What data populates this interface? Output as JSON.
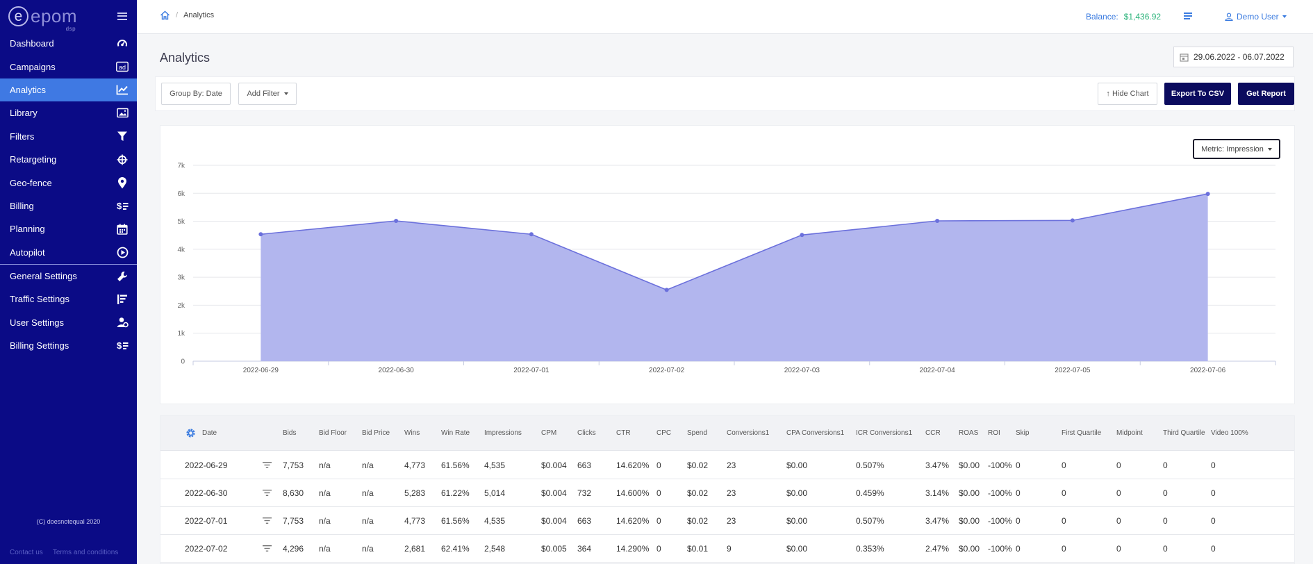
{
  "brand": {
    "name": "epom",
    "sub": "dsp",
    "accent": "#0b0b86",
    "active": "#3f79e3"
  },
  "sidebar": {
    "items": [
      {
        "label": "Dashboard",
        "icon": "gauge-icon"
      },
      {
        "label": "Campaigns",
        "icon": "ad-icon"
      },
      {
        "label": "Analytics",
        "icon": "chart-line-icon",
        "active": true
      },
      {
        "label": "Library",
        "icon": "image-icon"
      },
      {
        "label": "Filters",
        "icon": "funnel-icon"
      },
      {
        "label": "Retargeting",
        "icon": "crosshair-icon"
      },
      {
        "label": "Geo-fence",
        "icon": "map-pin-icon"
      },
      {
        "label": "Billing",
        "icon": "dollar-list-icon"
      },
      {
        "label": "Planning",
        "icon": "calendar-icon"
      },
      {
        "label": "Autopilot",
        "icon": "play-circle-icon"
      }
    ],
    "settings": [
      {
        "label": "General Settings",
        "icon": "wrench-icon"
      },
      {
        "label": "Traffic Settings",
        "icon": "traffic-bars-icon"
      },
      {
        "label": "User Settings",
        "icon": "user-gear-icon"
      },
      {
        "label": "Billing Settings",
        "icon": "dollar-list-icon"
      }
    ],
    "copyright": "(C) doesnotequal 2020",
    "links": [
      "Contact us",
      "Terms and conditions"
    ]
  },
  "header": {
    "breadcrumb": "Analytics",
    "balance_label": "Balance:",
    "balance_value": "$1,436.92",
    "user": "Demo User"
  },
  "page": {
    "title": "Analytics",
    "date_range": "29.06.2022 - 06.07.2022"
  },
  "toolbar": {
    "group_by": "Group By: Date",
    "add_filter": "Add Filter",
    "hide_chart": "↑ Hide Chart",
    "export_csv": "Export To CSV",
    "get_report": "Get Report"
  },
  "metric_button": "Metric: Impression",
  "chart_data": {
    "type": "area",
    "x": [
      "2022-06-29",
      "2022-06-30",
      "2022-07-01",
      "2022-07-02",
      "2022-07-03",
      "2022-07-04",
      "2022-07-05",
      "2022-07-06"
    ],
    "series": [
      {
        "values": [
          4535,
          5014,
          4535,
          2548,
          4510,
          5014,
          5030,
          5980
        ]
      }
    ],
    "y_ticks": [
      "0",
      "1k",
      "2k",
      "3k",
      "4k",
      "5k",
      "6k",
      "7k"
    ],
    "ylim": [
      0,
      7000
    ],
    "grid": true,
    "fill_color": "#b2b6ee",
    "line_color": "#6b70dc"
  },
  "table": {
    "columns": [
      "Date",
      "Bids",
      "Bid Floor",
      "Bid Price",
      "Wins",
      "Win Rate",
      "Impressions",
      "CPM",
      "Clicks",
      "CTR",
      "CPC",
      "Spend",
      "Conversions1",
      "CPA Conversions1",
      "ICR Conversions1",
      "CCR",
      "ROAS",
      "ROI",
      "Skip",
      "First Quartile",
      "Midpoint",
      "Third Quartile",
      "Video 100%"
    ],
    "rows": [
      [
        "2022-06-29",
        "7,753",
        "n/a",
        "n/a",
        "4,773",
        "61.56%",
        "4,535",
        "$0.004",
        "663",
        "14.620%",
        "0",
        "$0.02",
        "23",
        "$0.00",
        "0.507%",
        "3.47%",
        "$0.00",
        "-100%",
        "0",
        "0",
        "0",
        "0",
        "0"
      ],
      [
        "2022-06-30",
        "8,630",
        "n/a",
        "n/a",
        "5,283",
        "61.22%",
        "5,014",
        "$0.004",
        "732",
        "14.600%",
        "0",
        "$0.02",
        "23",
        "$0.00",
        "0.459%",
        "3.14%",
        "$0.00",
        "-100%",
        "0",
        "0",
        "0",
        "0",
        "0"
      ],
      [
        "2022-07-01",
        "7,753",
        "n/a",
        "n/a",
        "4,773",
        "61.56%",
        "4,535",
        "$0.004",
        "663",
        "14.620%",
        "0",
        "$0.02",
        "23",
        "$0.00",
        "0.507%",
        "3.47%",
        "$0.00",
        "-100%",
        "0",
        "0",
        "0",
        "0",
        "0"
      ],
      [
        "2022-07-02",
        "4,296",
        "n/a",
        "n/a",
        "2,681",
        "62.41%",
        "2,548",
        "$0.005",
        "364",
        "14.290%",
        "0",
        "$0.01",
        "9",
        "$0.00",
        "0.353%",
        "2.47%",
        "$0.00",
        "-100%",
        "0",
        "0",
        "0",
        "0",
        "0"
      ]
    ]
  }
}
